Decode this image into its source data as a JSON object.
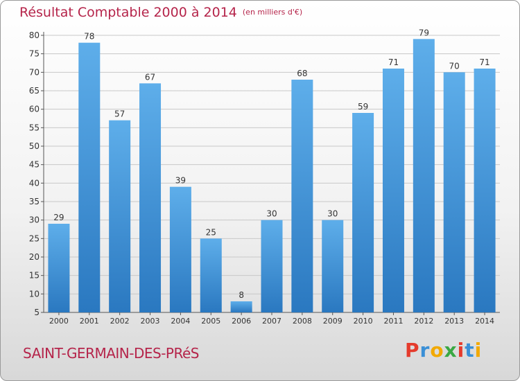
{
  "title": "Résultat Comptable 2000 à 2014",
  "subtitle": "(en milliers d'€)",
  "commune": "SAINT-GERMAIN-DES-PRéS",
  "logo": {
    "letters": [
      "P",
      "r",
      "o",
      "x",
      "i",
      "t",
      "i"
    ],
    "colors": [
      "#e53b2c",
      "#3a8fd6",
      "#f2a900",
      "#3aa843",
      "#e53b2c",
      "#3a8fd6",
      "#f2a900"
    ]
  },
  "colors": {
    "title": "#b5244a",
    "bar": "#4a9be0",
    "grid": "#c8c8c8"
  },
  "chart_data": {
    "type": "bar",
    "categories": [
      "2000",
      "2001",
      "2002",
      "2003",
      "2004",
      "2005",
      "2006",
      "2007",
      "2008",
      "2009",
      "2010",
      "2011",
      "2012",
      "2013",
      "2014"
    ],
    "values": [
      29,
      78,
      57,
      67,
      39,
      25,
      8,
      30,
      68,
      30,
      59,
      71,
      79,
      70,
      71
    ],
    "ylim": [
      5,
      80
    ],
    "yticks": [
      5,
      10,
      15,
      20,
      25,
      30,
      35,
      40,
      45,
      50,
      55,
      60,
      65,
      70,
      75,
      80
    ],
    "grid": true,
    "title": "Résultat Comptable 2000 à 2014",
    "subtitle": "(en milliers d'€)"
  }
}
